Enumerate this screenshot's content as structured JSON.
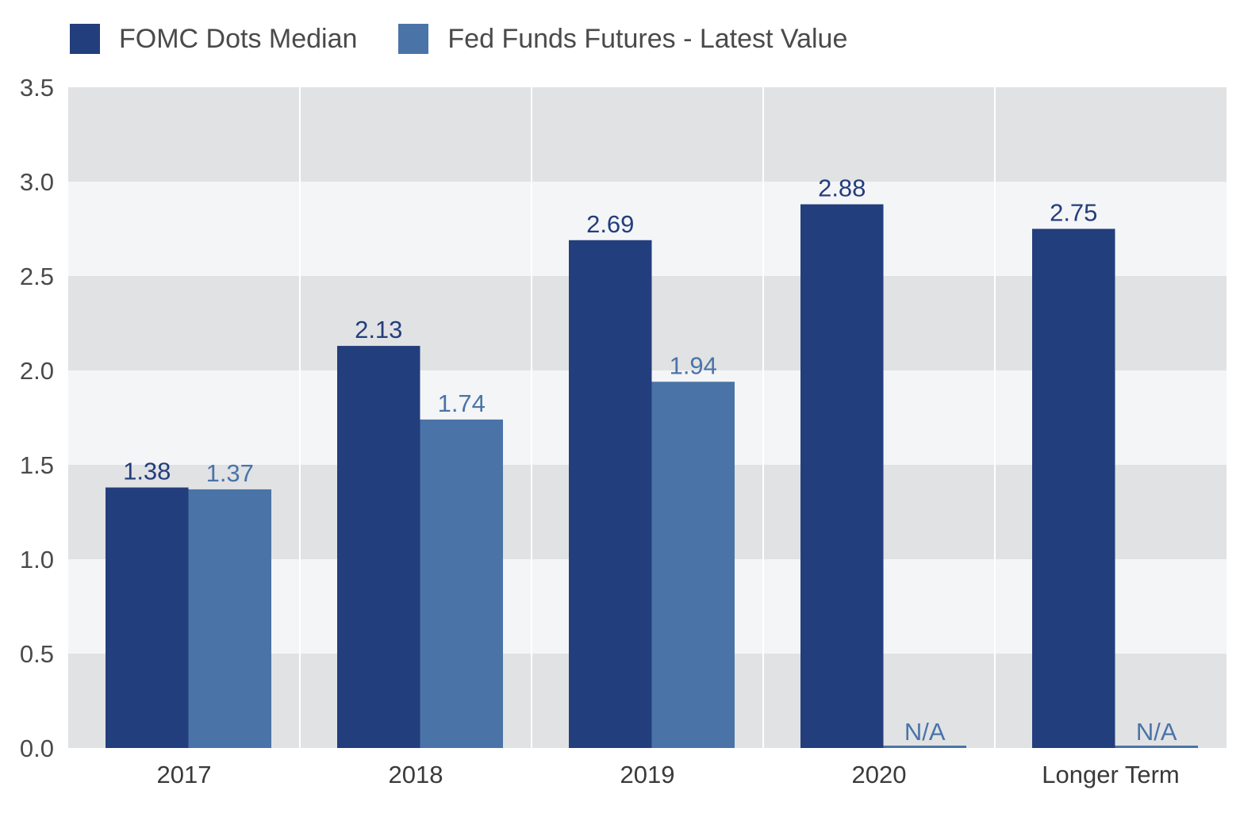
{
  "legend": {
    "items": [
      {
        "label": "FOMC Dots Median",
        "color": "#233e7c"
      },
      {
        "label": "Fed Funds Futures - Latest Value",
        "color": "#4a74a8"
      }
    ]
  },
  "chart_data": {
    "type": "bar",
    "title": "",
    "xlabel": "",
    "ylabel": "",
    "ylim": [
      0,
      3.5
    ],
    "yticks": [
      "0.0",
      "0.5",
      "1.0",
      "1.5",
      "2.0",
      "2.5",
      "3.0",
      "3.5"
    ],
    "categories": [
      "2017",
      "2018",
      "2019",
      "2020",
      "Longer Term"
    ],
    "series": [
      {
        "name": "FOMC Dots Median",
        "color": "#233e7c",
        "values": [
          1.38,
          2.13,
          2.69,
          2.88,
          2.75
        ],
        "labels": [
          "1.38",
          "2.13",
          "2.69",
          "2.88",
          "2.75"
        ]
      },
      {
        "name": "Fed Funds Futures - Latest Value",
        "color": "#4a74a8",
        "values": [
          1.37,
          1.74,
          1.94,
          null,
          null
        ],
        "labels": [
          "1.37",
          "1.74",
          "1.94",
          "N/A",
          "N/A"
        ]
      }
    ],
    "grid": "alternating horizontal bands with vertical category separators",
    "band_colors": [
      "#e1e2e4",
      "#f4f5f7"
    ],
    "legend_position": "top-left"
  }
}
